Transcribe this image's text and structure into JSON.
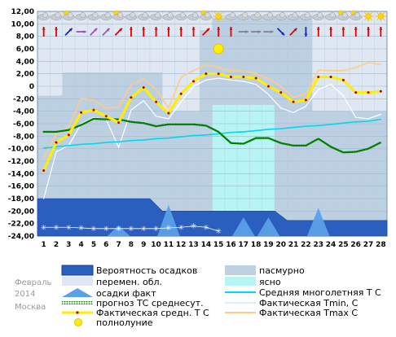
{
  "chart_data": {
    "type": "line",
    "month_label": "Февраль",
    "year_label": "2014",
    "city_label": "Москва",
    "days": [
      1,
      2,
      3,
      4,
      5,
      6,
      7,
      8,
      9,
      10,
      11,
      12,
      13,
      14,
      15,
      16,
      17,
      18,
      19,
      20,
      21,
      22,
      23,
      24,
      25,
      26,
      27,
      28
    ],
    "ylim": [
      -24,
      12
    ],
    "y_ticks": [
      "12,00",
      "10,00",
      "8,00",
      "6,00",
      "4,00",
      "2,00",
      "0",
      "-2,00",
      "-4,00",
      "-6,00",
      "-8,00",
      "-10,00",
      "-12,00",
      "-14,00",
      "-16,00",
      "-18,00",
      "-20,00",
      "-22,00",
      "-24,00"
    ],
    "y_tick_values": [
      12,
      10,
      8,
      6,
      4,
      2,
      0,
      -2,
      -4,
      -6,
      -8,
      -10,
      -12,
      -14,
      -16,
      -18,
      -20,
      -22,
      -24
    ],
    "background_colors": {
      "pasmurno": "#bcd0e2",
      "peremen": "#dfe8f2",
      "yasno": "#b8f4f4",
      "precip_prob": "#2a5fbf",
      "precip_fact": "#5aa0e8"
    },
    "series": [
      {
        "key": "fact_mean",
        "name": "Фактическая средн. Т С",
        "color": "#ffee00",
        "values": [
          -13.5,
          -9,
          -7.8,
          -4.2,
          -3.8,
          -4.8,
          -5.8,
          -1.8,
          -0.2,
          -2.5,
          -4.3,
          -1.2,
          0.8,
          2,
          2,
          1.5,
          1.5,
          1.3,
          0,
          -1,
          -2.5,
          -2.2,
          1.5,
          1.5,
          1,
          -1,
          -1,
          -0.8
        ]
      },
      {
        "key": "fact_tmin",
        "name": "Фактическая Tmin, С",
        "color": "#d6f2fa",
        "values": [
          -18,
          -10.5,
          -9.5,
          -6,
          -5,
          -5.3,
          -9.8,
          -3.8,
          -2.3,
          -4.8,
          -5.2,
          -2.5,
          0,
          1,
          1.3,
          1,
          0.8,
          0.3,
          -1.3,
          -3.5,
          -4.2,
          -3.2,
          -0.5,
          0.3,
          -1.5,
          -5,
          -5.2,
          -4.5
        ]
      },
      {
        "key": "fact_tmax",
        "name": "Фактическая Tmax С",
        "color": "#ffcc88",
        "values": [
          -11.5,
          -7.7,
          -6.5,
          -2,
          -2.2,
          -3.5,
          -3.3,
          0.2,
          1.2,
          -0.5,
          -3.5,
          1.5,
          2.5,
          3.5,
          3,
          2.5,
          2.5,
          2,
          1.2,
          0,
          -1.8,
          -1.2,
          2.6,
          2.5,
          2.5,
          3,
          3.8,
          3.5
        ]
      },
      {
        "key": "forecast_mean",
        "name": "прогноз ТС среднесут.",
        "color": "#008000",
        "values": [
          -7.3,
          -7.3,
          -7,
          -6.2,
          -5.2,
          -5.3,
          -5.3,
          -5.7,
          -5.9,
          -6.4,
          -6.1,
          -6.1,
          -6.1,
          -6.3,
          -7.3,
          -9.1,
          -9.2,
          -8.3,
          -8.3,
          -9.1,
          -9.5,
          -9.5,
          -8.4,
          -9.7,
          -10.6,
          -10.5,
          -10,
          -9
        ]
      },
      {
        "key": "normal_mean",
        "name": "Средняя многолетняя Т С",
        "color": "#00d8f0",
        "values": [
          -9.9,
          -9.7,
          -9.5,
          -9.3,
          -9.2,
          -9,
          -8.9,
          -8.7,
          -8.6,
          -8.4,
          -8.3,
          -8.1,
          -7.9,
          -7.8,
          -7.6,
          -7.4,
          -7.3,
          -7.1,
          -6.9,
          -6.8,
          -6.6,
          -6.4,
          -6.3,
          -6.1,
          -5.9,
          -5.7,
          -5.6,
          -5.3
        ]
      }
    ],
    "cloud_bands": [
      {
        "kind": "pasmurno",
        "from": 0.5,
        "to": 2.5,
        "top": -1.5
      },
      {
        "kind": "pasmurno",
        "from": 2.5,
        "to": 10.5,
        "top": 2.2
      },
      {
        "kind": "pasmurno",
        "from": 10.5,
        "to": 13.5,
        "top": -4
      },
      {
        "kind": "pasmurno",
        "from": 13.5,
        "to": 14.5,
        "top": 9
      },
      {
        "kind": "pasmurno",
        "from": 14.5,
        "to": 22.5,
        "top": 11
      },
      {
        "kind": "pasmurno",
        "from": 22.5,
        "to": 28.5,
        "top": -4
      },
      {
        "kind": "yasno",
        "from": 14.5,
        "to": 19.5,
        "top": -3,
        "bottom": -24
      }
    ],
    "precip_probability": [
      {
        "from": 0.5,
        "to": 9.5,
        "level": -18
      },
      {
        "from": 9.5,
        "to": 10.5,
        "level": -18,
        "slope_to": -20
      },
      {
        "from": 10.5,
        "to": 19.5,
        "level": -20
      },
      {
        "from": 19.5,
        "to": 20.5,
        "level": -20,
        "slope_to": -21.5
      },
      {
        "from": 20.5,
        "to": 28.5,
        "level": -21.5
      }
    ],
    "precip_fact_peaks": [
      {
        "day": 7,
        "height": -22.3
      },
      {
        "day": 11,
        "height": -19
      },
      {
        "day": 17,
        "height": -21
      },
      {
        "day": 19,
        "height": -21
      },
      {
        "day": 23,
        "height": -19.5
      }
    ],
    "snow_markers": [
      1,
      2,
      3,
      4,
      5,
      6,
      7,
      8,
      9,
      10,
      11,
      12,
      13,
      14,
      15
    ],
    "snow_marker_levels": [
      -22.6,
      -22.6,
      -22.6,
      -22.7,
      -22.8,
      -22.8,
      -22.8,
      -22.8,
      -22.8,
      -22.8,
      -22.7,
      -22.6,
      -22.4,
      -22.6,
      -23.2
    ],
    "full_moon_day": 15,
    "full_moon_y": 6,
    "wind_arrows": [
      {
        "day": 1,
        "dir": "up",
        "color": "#e00000"
      },
      {
        "day": 2,
        "dir": "up",
        "color": "#e00000"
      },
      {
        "day": 3,
        "dir": "ne",
        "color": "#2020c0"
      },
      {
        "day": 4,
        "dir": "right",
        "color": "#a050c0"
      },
      {
        "day": 5,
        "dir": "ne",
        "color": "#a050c0"
      },
      {
        "day": 6,
        "dir": "ne",
        "color": "#a050c0"
      },
      {
        "day": 7,
        "dir": "ne",
        "color": "#e00000"
      },
      {
        "day": 8,
        "dir": "up",
        "color": "#e00000"
      },
      {
        "day": 9,
        "dir": "up",
        "color": "#e00000"
      },
      {
        "day": 10,
        "dir": "up",
        "color": "#e00000"
      },
      {
        "day": 11,
        "dir": "up",
        "color": "#e00000"
      },
      {
        "day": 12,
        "dir": "up",
        "color": "#e00000"
      },
      {
        "day": 13,
        "dir": "up",
        "color": "#e00000"
      },
      {
        "day": 14,
        "dir": "ne",
        "color": "#e00000"
      },
      {
        "day": 15,
        "dir": "up",
        "color": "#e00000"
      },
      {
        "day": 16,
        "dir": "up",
        "color": "#e00000"
      },
      {
        "day": 17,
        "dir": "right",
        "color": "#8080a0"
      },
      {
        "day": 18,
        "dir": "right",
        "color": "#8080a0"
      },
      {
        "day": 19,
        "dir": "right",
        "color": "#8080a0"
      },
      {
        "day": 20,
        "dir": "se",
        "color": "#2020c0"
      },
      {
        "day": 21,
        "dir": "ne",
        "color": "#e00000"
      },
      {
        "day": 22,
        "dir": "down",
        "color": "#2020c0"
      },
      {
        "day": 23,
        "dir": "up",
        "color": "#e00000"
      },
      {
        "day": 24,
        "dir": "up",
        "color": "#e00000"
      },
      {
        "day": 25,
        "dir": "up",
        "color": "#e00000"
      },
      {
        "day": 26,
        "dir": "up",
        "color": "#e00000"
      },
      {
        "day": 27,
        "dir": "up",
        "color": "#e00000"
      },
      {
        "day": 28,
        "dir": "up",
        "color": "#e00000"
      }
    ],
    "weather_icons": [
      {
        "day": 1,
        "icon": "cloud-icon"
      },
      {
        "day": 2,
        "icon": "cloud-icon"
      },
      {
        "day": 3,
        "icon": "cloud-sun-icon"
      },
      {
        "day": 4,
        "icon": "cloud-icon"
      },
      {
        "day": 5,
        "icon": "cloud-icon"
      },
      {
        "day": 6,
        "icon": "cloud-icon"
      },
      {
        "day": 7,
        "icon": "cloud-sun-icon"
      },
      {
        "day": 8,
        "icon": "cloud-icon"
      },
      {
        "day": 9,
        "icon": "cloud-icon"
      },
      {
        "day": 10,
        "icon": "cloud-icon"
      },
      {
        "day": 11,
        "icon": "cloud-icon"
      },
      {
        "day": 12,
        "icon": "cloud-icon"
      },
      {
        "day": 13,
        "icon": "cloud-icon"
      },
      {
        "day": 14,
        "icon": "cloud-sun-icon"
      },
      {
        "day": 15,
        "icon": "sun-icon"
      },
      {
        "day": 16,
        "icon": "cloud-icon"
      },
      {
        "day": 17,
        "icon": "cloud-icon"
      },
      {
        "day": 18,
        "icon": "cloud-icon"
      },
      {
        "day": 19,
        "icon": "cloud-icon"
      },
      {
        "day": 20,
        "icon": "cloud-icon"
      },
      {
        "day": 21,
        "icon": "cloud-icon"
      },
      {
        "day": 22,
        "icon": "cloud-icon"
      },
      {
        "day": 23,
        "icon": "cloud-icon"
      },
      {
        "day": 24,
        "icon": "cloud-icon"
      },
      {
        "day": 25,
        "icon": "cloud-sun-icon"
      },
      {
        "day": 26,
        "icon": "cloud-sun-icon"
      },
      {
        "day": 27,
        "icon": "sun-icon"
      },
      {
        "day": 28,
        "icon": "sun-icon"
      }
    ],
    "legend": {
      "precip_prob": "Вероятность осадков",
      "pasmurno": "пасмурно",
      "peremen": "перемен. обл.",
      "yasno": "ясно",
      "precip_fact": "осадки факт",
      "normal_mean": "Средняя многолетняя Т С",
      "forecast_mean": "прогноз ТС среднесут.",
      "fact_tmin": "Фактическая Tmin, С",
      "fact_mean": "Фактическая средн. Т С",
      "fact_tmax": "Фактическая Tmax С",
      "full_moon": "полнолуние"
    }
  }
}
